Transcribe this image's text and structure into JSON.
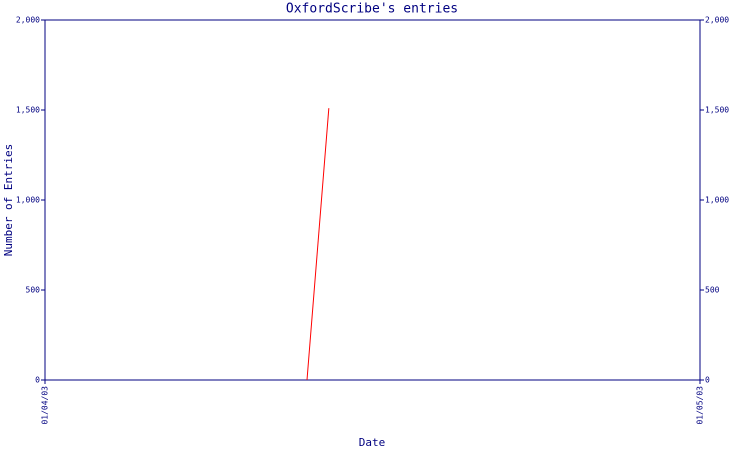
{
  "chart_data": {
    "type": "line",
    "title": "OxfordScribe's entries",
    "xlabel": "Date",
    "ylabel": "Number of Entries",
    "x": [
      "13/04/03",
      "14/04/03"
    ],
    "series": [
      {
        "values": [
          0,
          1510
        ],
        "color": "#ff0000"
      }
    ],
    "xlim": [
      "01/04/03",
      "01/05/03"
    ],
    "xticks": [
      "01/04/03",
      "01/05/03"
    ],
    "ylim": [
      0,
      2000
    ],
    "yticks": [
      0,
      500,
      {
        "value": 1000,
        "label": "1,000"
      },
      {
        "value": 1500,
        "label": "1,500"
      },
      {
        "value": 2000,
        "label": "2,000"
      }
    ],
    "y2lim": [
      0,
      2000
    ],
    "y2ticks": [
      0,
      500,
      {
        "value": 1000,
        "label": "1,000"
      },
      {
        "value": 1500,
        "label": "1,500"
      },
      {
        "value": 2000,
        "label": "2,000"
      }
    ],
    "axis_color": "#000080"
  }
}
